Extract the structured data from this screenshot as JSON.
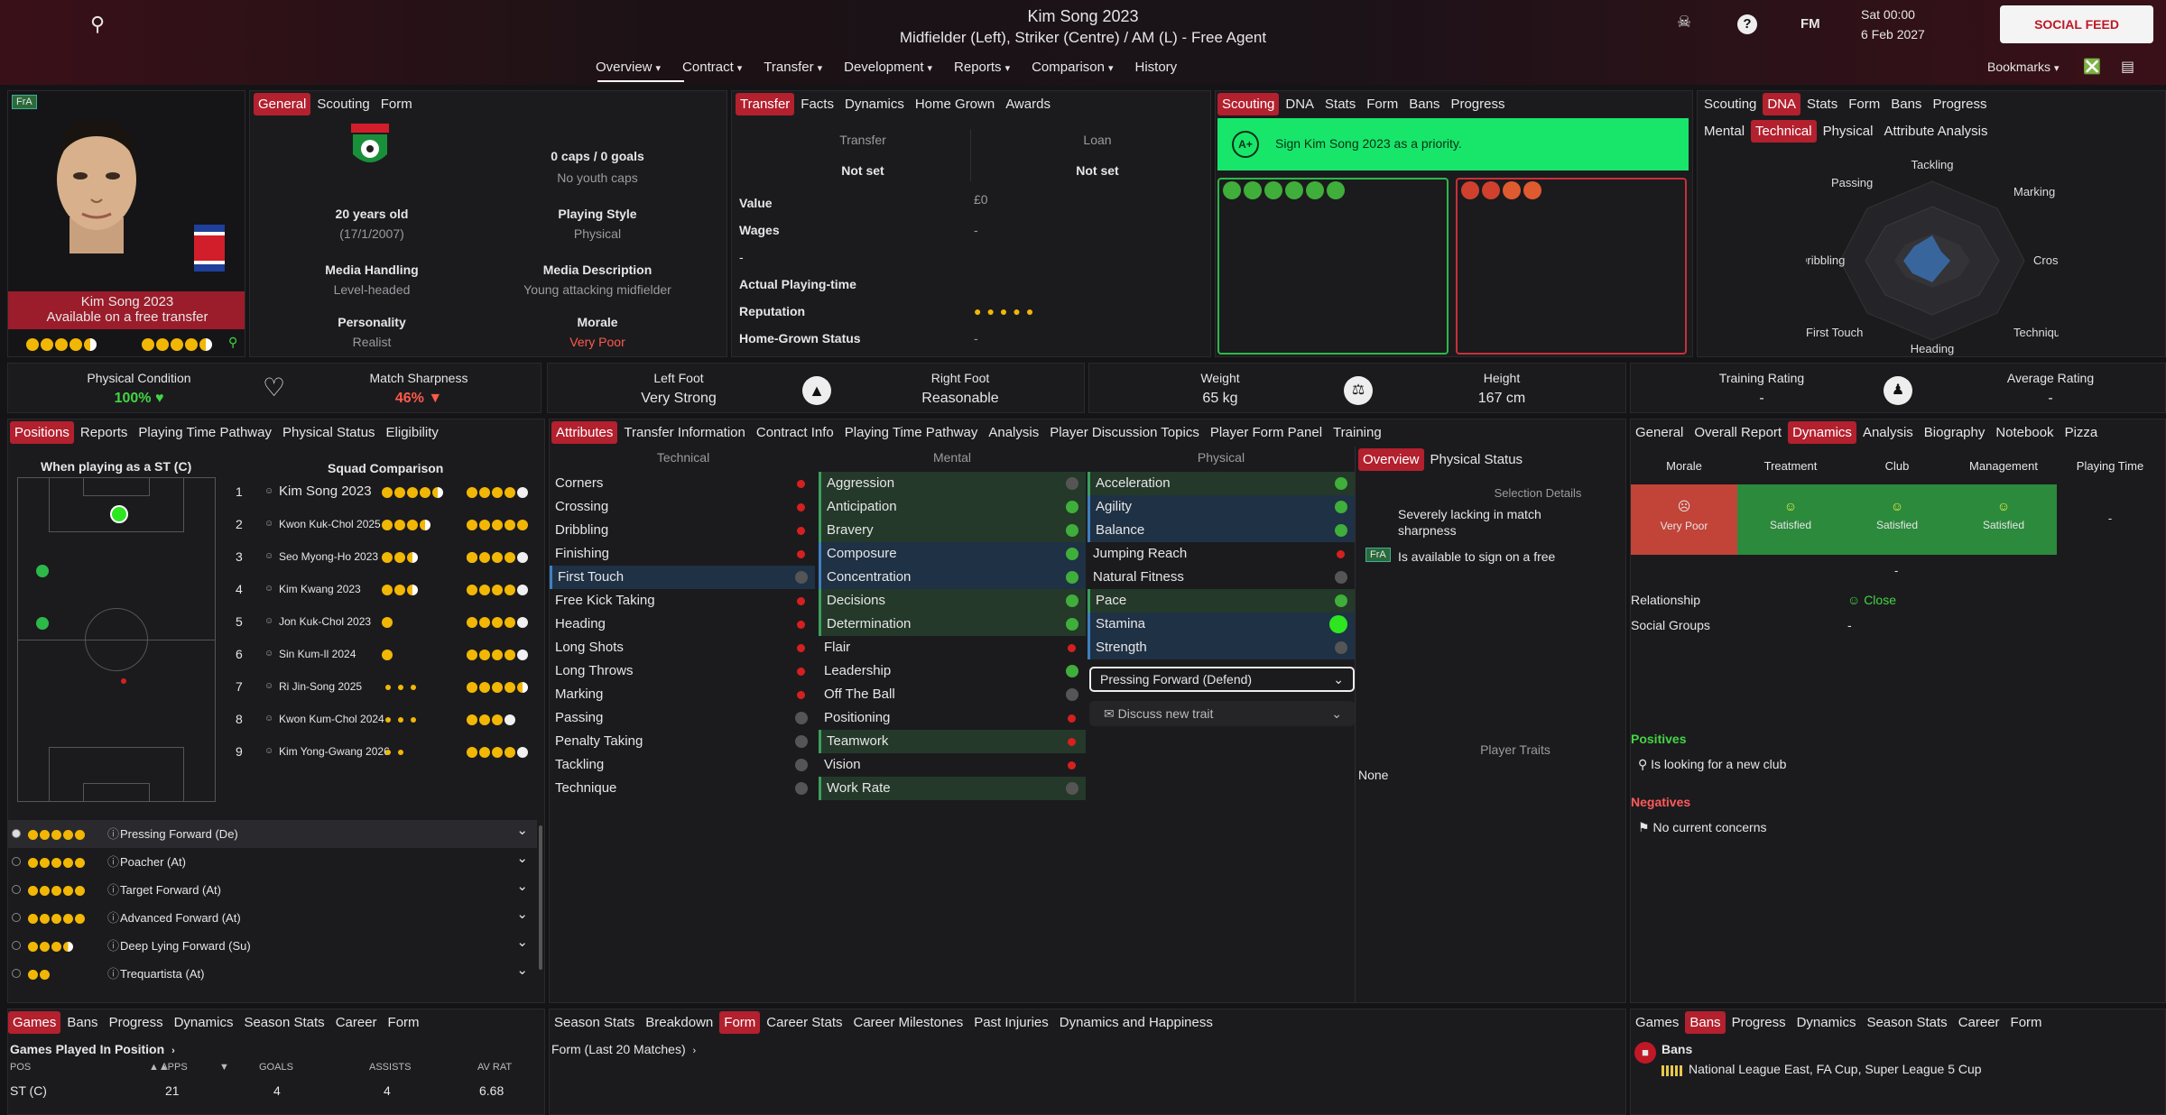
{
  "header": {
    "name": "Kim Song 2023",
    "subtitle": "Midfielder (Left), Striker (Centre) / AM (L) - Free Agent",
    "time": "Sat 00:00",
    "date": "6 Feb 2027",
    "social_feed": "SOCIAL FEED",
    "help": "?",
    "fm": "FM",
    "bookmarks": "Bookmarks"
  },
  "nav": [
    "Overview",
    "Contract",
    "Transfer",
    "Development",
    "Reports",
    "Comparison",
    "History"
  ],
  "profile": {
    "badge": "FrA",
    "name": "Kim Song 2023",
    "status": "Available on a free transfer"
  },
  "general": {
    "tabs": [
      "General",
      "Scouting",
      "Form"
    ],
    "caps": "0 caps / 0 goals",
    "youth": "No youth caps",
    "age": "20 years old",
    "dob": "(17/1/2007)",
    "style_label": "Playing Style",
    "style": "Physical",
    "mh_label": "Media Handling",
    "mh": "Level-headed",
    "md_label": "Media Description",
    "md": "Young attacking midfielder",
    "pers_label": "Personality",
    "pers": "Realist",
    "morale_label": "Morale",
    "morale": "Very Poor"
  },
  "transfer": {
    "tabs": [
      "Transfer",
      "Facts",
      "Dynamics",
      "Home Grown",
      "Awards"
    ],
    "t_label": "Transfer",
    "t_val": "Not set",
    "l_label": "Loan",
    "l_val": "Not set",
    "value_label": "Value",
    "value": "£0",
    "wages_label": "Wages",
    "wages": "-",
    "dash": "-",
    "apt_label": "Actual Playing-time",
    "rep_label": "Reputation",
    "hg_label": "Home-Grown Status",
    "hg": "-"
  },
  "scouting": {
    "tabs": [
      "Scouting",
      "DNA",
      "Stats",
      "Form",
      "Bans",
      "Progress"
    ],
    "grade": "A+",
    "msg": "Sign Kim Song 2023 as a priority."
  },
  "dna": {
    "tabs": [
      "Scouting",
      "DNA",
      "Stats",
      "Form",
      "Bans",
      "Progress"
    ],
    "subtabs": [
      "Mental",
      "Technical",
      "Physical",
      "Attribute Analysis"
    ],
    "axes": [
      "Tackling",
      "Marking",
      "Crossing",
      "Technique",
      "Heading",
      "First Touch",
      "Dribbling",
      "Passing"
    ]
  },
  "stats": {
    "pc_label": "Physical Condition",
    "pc": "100%",
    "ms_label": "Match Sharpness",
    "ms": "46%",
    "lf_label": "Left Foot",
    "lf": "Very Strong",
    "rf_label": "Right Foot",
    "rf": "Reasonable",
    "w_label": "Weight",
    "w": "65 kg",
    "h_label": "Height",
    "h": "167 cm",
    "tr_label": "Training Rating",
    "tr": "-",
    "ar_label": "Average Rating",
    "ar": "-"
  },
  "positions": {
    "tabs": [
      "Positions",
      "Reports",
      "Playing Time Pathway",
      "Physical Status",
      "Eligibility"
    ],
    "when": "When playing as a ST (C)",
    "squad": "Squad Comparison",
    "squad_list": [
      {
        "n": "1",
        "name": "Kim Song 2023"
      },
      {
        "n": "2",
        "name": "Kwon Kuk-Chol 2025"
      },
      {
        "n": "3",
        "name": "Seo Myong-Ho 2023"
      },
      {
        "n": "4",
        "name": "Kim Kwang 2023"
      },
      {
        "n": "5",
        "name": "Jon Kuk-Chol 2023"
      },
      {
        "n": "6",
        "name": "Sin Kum-Il 2024"
      },
      {
        "n": "7",
        "name": "Ri Jin-Song 2025"
      },
      {
        "n": "8",
        "name": "Kwon Kum-Chol 2024"
      },
      {
        "n": "9",
        "name": "Kim Yong-Gwang 2026"
      }
    ],
    "roles": [
      "Pressing Forward (De)",
      "Poacher (At)",
      "Target Forward (At)",
      "Advanced Forward (At)",
      "Deep Lying Forward (Su)",
      "Trequartista (At)"
    ]
  },
  "attributes": {
    "tabs": [
      "Attributes",
      "Transfer Information",
      "Contract Info",
      "Playing Time Pathway",
      "Analysis",
      "Player Discussion Topics",
      "Player Form Panel",
      "Training"
    ],
    "tech_h": "Technical",
    "ment_h": "Mental",
    "phys_h": "Physical",
    "technical": [
      "Corners",
      "Crossing",
      "Dribbling",
      "Finishing",
      "First Touch",
      "Free Kick Taking",
      "Heading",
      "Long Shots",
      "Long Throws",
      "Marking",
      "Passing",
      "Penalty Taking",
      "Tackling",
      "Technique"
    ],
    "mental": [
      "Aggression",
      "Anticipation",
      "Bravery",
      "Composure",
      "Concentration",
      "Decisions",
      "Determination",
      "Flair",
      "Leadership",
      "Off The Ball",
      "Positioning",
      "Teamwork",
      "Vision",
      "Work Rate"
    ],
    "physical": [
      "Acceleration",
      "Agility",
      "Balance",
      "Jumping Reach",
      "Natural Fitness",
      "Pace",
      "Stamina",
      "Strength"
    ],
    "role_select": "Pressing Forward (Defend)",
    "discuss": "Discuss new trait"
  },
  "overview": {
    "tabs": [
      "Overview",
      "Physical Status"
    ],
    "sel_title": "Selection Details",
    "sel1": "Severely lacking in match sharpness",
    "sel2": "Is available to sign on a free",
    "badge": "FrA",
    "traits_title": "Player Traits",
    "traits": "None"
  },
  "dynamics": {
    "tabs": [
      "General",
      "Overall Report",
      "Dynamics",
      "Analysis",
      "Biography",
      "Notebook",
      "Pizza"
    ],
    "cols": [
      "Morale",
      "Treatment",
      "Club",
      "Management",
      "Playing Time"
    ],
    "morale": "Very Poor",
    "treat": "Satisfied",
    "club": "Satisfied",
    "mgmt": "Satisfied",
    "pt": "-",
    "dash": "-",
    "rel_label": "Relationship",
    "rel": "Close",
    "sg_label": "Social Groups",
    "sg": "-",
    "pos_title": "Positives",
    "pos": "Is looking for a new club",
    "neg_title": "Negatives",
    "neg": "No current concerns"
  },
  "games": {
    "tabs": [
      "Games",
      "Bans",
      "Progress",
      "Dynamics",
      "Season Stats",
      "Career",
      "Form"
    ],
    "title": "Games Played In Position",
    "cols": [
      "POS",
      "APPS",
      "GOALS",
      "ASSISTS",
      "AV RAT"
    ],
    "row": [
      "ST (C)",
      "21",
      "4",
      "4",
      "6.68"
    ]
  },
  "form": {
    "tabs": [
      "Season Stats",
      "Breakdown",
      "Form",
      "Career Stats",
      "Career Milestones",
      "Past Injuries",
      "Dynamics and Happiness"
    ],
    "title": "Form (Last 20 Matches)"
  },
  "bans": {
    "tabs": [
      "Games",
      "Bans",
      "Progress",
      "Dynamics",
      "Season Stats",
      "Career",
      "Form"
    ],
    "title": "Bans",
    "comps": "National League East, FA Cup, Super League 5 Cup"
  }
}
